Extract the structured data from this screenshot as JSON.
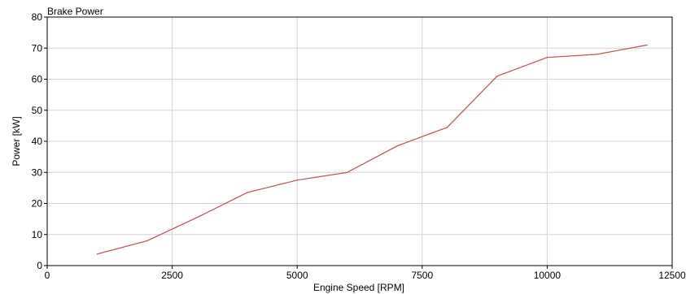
{
  "chart_data": {
    "type": "line",
    "title": "Brake Power",
    "xlabel": "Engine Speed [RPM]",
    "ylabel": "Power [kW]",
    "xlim": [
      0,
      12500
    ],
    "ylim": [
      0,
      80
    ],
    "xticks": [
      "0",
      "2500",
      "5000",
      "7500",
      "10000",
      "12500"
    ],
    "yticks": [
      "0",
      "10",
      "20",
      "30",
      "40",
      "50",
      "60",
      "70",
      "80"
    ],
    "grid": true,
    "series": [
      {
        "color": "#c0504d",
        "x": [
          1000,
          2000,
          3000,
          4000,
          5000,
          6000,
          7000,
          8000,
          9000,
          10000,
          11000,
          12000
        ],
        "y": [
          3.7,
          8.0,
          15.5,
          23.5,
          27.5,
          30.0,
          38.5,
          44.5,
          61.0,
          67.0,
          68.0,
          71.0
        ]
      }
    ]
  }
}
